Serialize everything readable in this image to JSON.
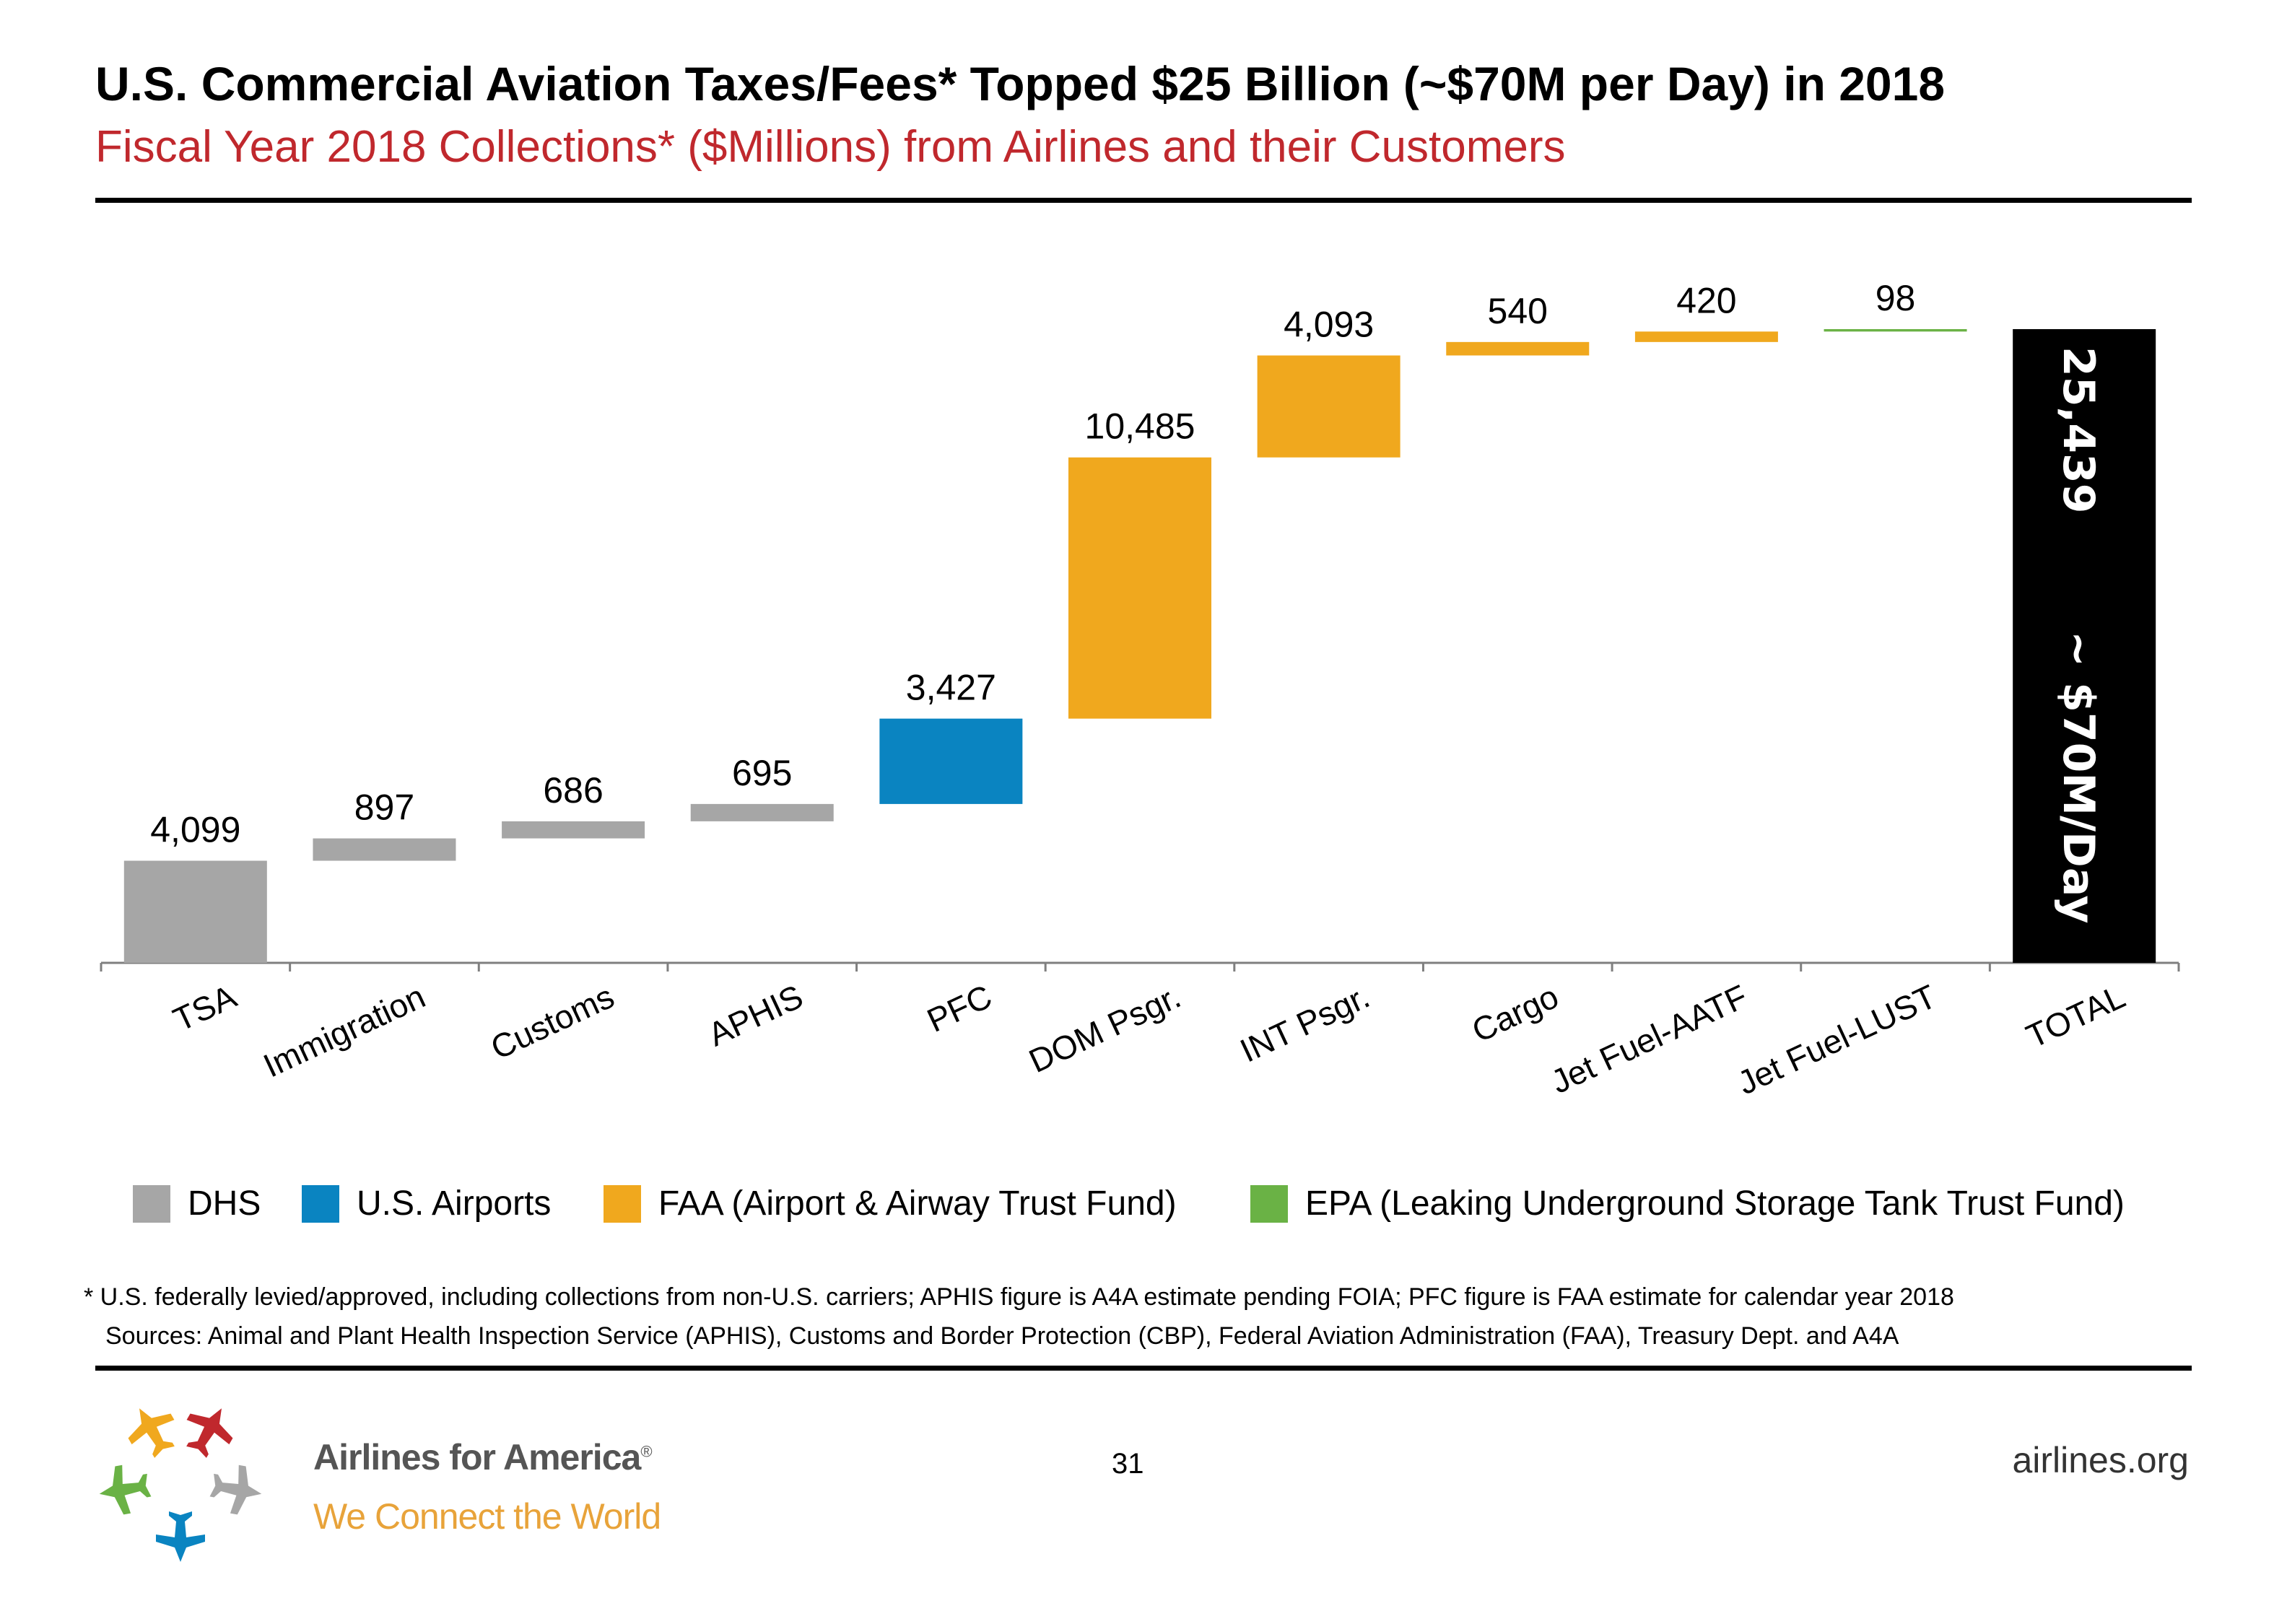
{
  "header": {
    "title": "U.S. Commercial Aviation Taxes/Fees* Topped $25 Billion (~$70M per Day) in 2018",
    "subtitle": "Fiscal Year 2018 Collections* ($Millions) from Airlines and their Customers"
  },
  "colors": {
    "DHS": "#a6a6a6",
    "U.S. Airports": "#0a84c1",
    "FAA": "#f0a81e",
    "EPA": "#6ab245",
    "total": "#000000",
    "subtitle": "#c0282d"
  },
  "chart_data": {
    "type": "bar",
    "subtype": "waterfall",
    "categories": [
      "TSA",
      "Immigration",
      "Customs",
      "APHIS",
      "PFC",
      "DOM Psgr.",
      "INT Psgr.",
      "Cargo",
      "Jet Fuel-AATF",
      "Jet Fuel-LUST",
      "TOTAL"
    ],
    "values": [
      4099,
      897,
      686,
      695,
      3427,
      10485,
      4093,
      540,
      420,
      98,
      25439
    ],
    "value_labels": [
      "4,099",
      "897",
      "686",
      "695",
      "3,427",
      "10,485",
      "4,093",
      "540",
      "420",
      "98",
      "25,439"
    ],
    "groups": [
      "DHS",
      "DHS",
      "DHS",
      "DHS",
      "U.S. Airports",
      "FAA",
      "FAA",
      "FAA",
      "FAA",
      "EPA",
      "total"
    ],
    "total_annotation": "~ $70M/Day",
    "ylim": [
      0,
      25439
    ],
    "legend": [
      {
        "key": "DHS",
        "label": "DHS"
      },
      {
        "key": "U.S. Airports",
        "label": "U.S. Airports"
      },
      {
        "key": "FAA",
        "label": "FAA (Airport & Airway Trust Fund)"
      },
      {
        "key": "EPA",
        "label": "EPA (Leaking Underground Storage Tank Trust Fund)"
      }
    ],
    "legend_position": "bottom",
    "grid": false
  },
  "footnotes": {
    "line1": "* U.S. federally levied/approved, including collections from non-U.S. carriers; APHIS figure is A4A estimate pending FOIA; PFC figure is FAA estimate for calendar year 2018",
    "line2": "Sources: Animal and Plant Health Inspection Service (APHIS), Customs and Border Protection (CBP), Federal Aviation Administration (FAA), Treasury Dept. and A4A"
  },
  "footer": {
    "brand_name": "Airlines for America",
    "registered": "®",
    "tagline": "We Connect the World",
    "page_number": "31",
    "website": "airlines.org"
  }
}
